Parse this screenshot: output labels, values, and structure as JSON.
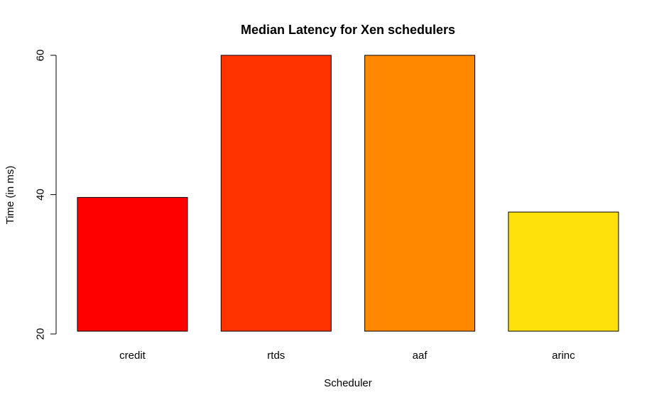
{
  "chart_data": {
    "type": "bar",
    "title": "Median Latency for Xen schedulers",
    "xlabel": "Scheduler",
    "ylabel": "Time (in ms)",
    "categories": [
      "credit",
      "rtds",
      "aaf",
      "arinc"
    ],
    "values": [
      39.6,
      60.0,
      60.0,
      37.5
    ],
    "bar_base": 20.4,
    "colors": [
      "#ff0000",
      "#ff3300",
      "#ff8800",
      "#ffe10a"
    ],
    "ylim": [
      20,
      60
    ],
    "yticks": [
      20,
      40,
      60
    ],
    "ytick_labels": [
      "20",
      "40",
      "60"
    ],
    "grid": false,
    "legend": "none"
  }
}
